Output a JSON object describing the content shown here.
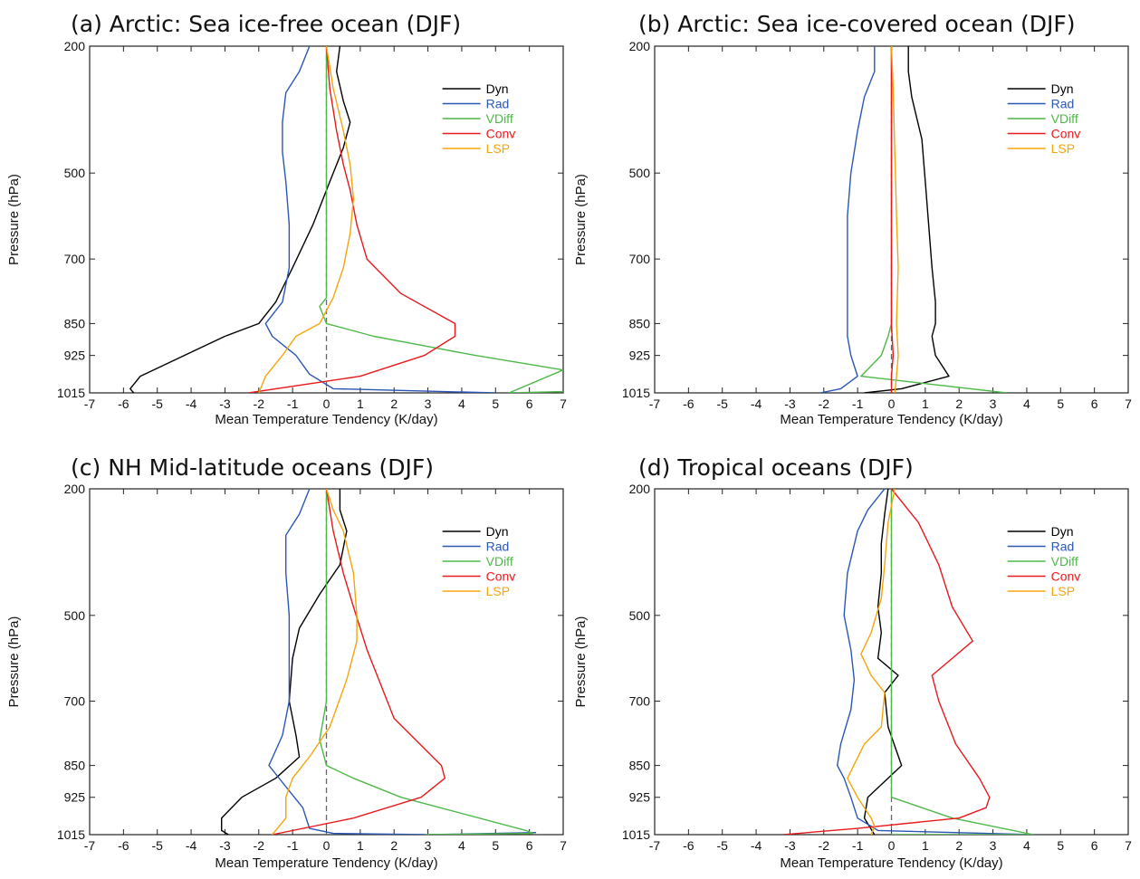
{
  "colors": {
    "Dyn": "#000000",
    "Rad": "#2a56b4",
    "VDiff": "#4db848",
    "Conv": "#e8191d",
    "LSP": "#f5a50c"
  },
  "chart_data": [
    {
      "type": "line",
      "title": "(a) Arctic: Sea ice-free ocean (DJF)",
      "xlabel": "Mean Temperature Tendency (K/day)",
      "ylabel": "Pressure (hPa)",
      "xlim": [
        -7,
        7
      ],
      "ylim": [
        1015,
        200
      ],
      "xticks": [
        "-7",
        "-6",
        "-5",
        "-4",
        "-3",
        "-2",
        "-1",
        "0",
        "1",
        "2",
        "3",
        "4",
        "5",
        "6",
        "7"
      ],
      "yticks": [
        "200",
        "500",
        "700",
        "850",
        "925",
        "1015"
      ],
      "legend": "top-right",
      "series": [
        {
          "name": "Dyn",
          "x": [
            0.4,
            0.3,
            0.5,
            0.7,
            0.5,
            0.1,
            -0.4,
            -1.0,
            -1.5,
            -2.0,
            -3.0,
            -4.2,
            -5.5,
            -5.8,
            -5.7
          ],
          "y": [
            200,
            260,
            330,
            380,
            440,
            520,
            620,
            720,
            800,
            850,
            880,
            925,
            975,
            1005,
            1015
          ]
        },
        {
          "name": "Rad",
          "x": [
            -0.5,
            -0.8,
            -1.2,
            -1.3,
            -1.3,
            -1.2,
            -1.1,
            -1.1,
            -1.3,
            -1.8,
            -1.6,
            -0.9,
            -0.5,
            0.2,
            5.0
          ],
          "y": [
            200,
            260,
            310,
            380,
            450,
            520,
            620,
            720,
            800,
            850,
            880,
            925,
            970,
            1005,
            1015
          ]
        },
        {
          "name": "VDiff",
          "x": [
            0,
            0,
            0,
            0,
            0,
            0.0,
            -0.2,
            0.0,
            1.4,
            4.4,
            7.0,
            5.4,
            7.0
          ],
          "y": [
            200,
            400,
            600,
            700,
            760,
            790,
            810,
            850,
            880,
            925,
            960,
            1015,
            1012
          ]
        },
        {
          "name": "Conv",
          "x": [
            0,
            0.1,
            0.3,
            0.5,
            0.7,
            0.9,
            1.2,
            2.2,
            3.8,
            3.8,
            2.9,
            1.0,
            -2.3
          ],
          "y": [
            200,
            300,
            400,
            480,
            540,
            620,
            700,
            780,
            850,
            880,
            925,
            975,
            1015
          ]
        },
        {
          "name": "LSP",
          "x": [
            0,
            0.2,
            0.5,
            0.7,
            0.8,
            0.7,
            0.5,
            0.2,
            -0.2,
            -0.9,
            -1.3,
            -1.8,
            -2.0
          ],
          "y": [
            200,
            300,
            400,
            480,
            560,
            640,
            720,
            790,
            850,
            880,
            925,
            975,
            1015
          ]
        }
      ]
    },
    {
      "type": "line",
      "title": "(b) Arctic: Sea ice-covered ocean (DJF)",
      "xlabel": "Mean Temperature Tendency (K/day)",
      "ylabel": "Pressure (hPa)",
      "xlim": [
        -7,
        7
      ],
      "ylim": [
        1015,
        200
      ],
      "xticks": [
        "-7",
        "-6",
        "-5",
        "-4",
        "-3",
        "-2",
        "-1",
        "0",
        "1",
        "2",
        "3",
        "4",
        "5",
        "6",
        "7"
      ],
      "yticks": [
        "200",
        "500",
        "700",
        "850",
        "925",
        "1015"
      ],
      "legend": "top-right",
      "series": [
        {
          "name": "Dyn",
          "x": [
            0.5,
            0.5,
            0.6,
            0.9,
            1.0,
            1.1,
            1.2,
            1.3,
            1.3,
            1.2,
            1.3,
            1.7,
            0.3,
            -0.8
          ],
          "y": [
            200,
            260,
            320,
            420,
            520,
            620,
            720,
            800,
            850,
            880,
            925,
            975,
            1005,
            1015
          ]
        },
        {
          "name": "Rad",
          "x": [
            -0.5,
            -0.5,
            -0.8,
            -1.0,
            -1.2,
            -1.3,
            -1.3,
            -1.3,
            -1.3,
            -1.3,
            -1.2,
            -1.0,
            -1.5,
            -2.1
          ],
          "y": [
            200,
            260,
            320,
            400,
            500,
            600,
            700,
            800,
            850,
            880,
            925,
            975,
            1005,
            1015
          ]
        },
        {
          "name": "VDiff",
          "x": [
            0,
            0,
            0,
            0,
            0,
            0,
            -0.1,
            -0.3,
            -0.9,
            3.4
          ],
          "y": [
            200,
            400,
            600,
            700,
            800,
            850,
            880,
            925,
            975,
            1015
          ]
        },
        {
          "name": "Conv",
          "x": [
            0,
            0,
            0,
            0,
            0,
            0.05,
            0,
            0
          ],
          "y": [
            200,
            300,
            500,
            700,
            850,
            925,
            975,
            1015
          ]
        },
        {
          "name": "LSP",
          "x": [
            0,
            0.05,
            0.1,
            0.15,
            0.2,
            0.15,
            0.2,
            0.15,
            0.1
          ],
          "y": [
            200,
            300,
            450,
            600,
            720,
            850,
            925,
            975,
            1015
          ]
        }
      ]
    },
    {
      "type": "line",
      "title": "(c) NH Mid-latitude oceans (DJF)",
      "xlabel": "Mean Temperature Tendency (K/day)",
      "ylabel": "Pressure (hPa)",
      "xlim": [
        -7,
        7
      ],
      "ylim": [
        1015,
        200
      ],
      "xticks": [
        "-7",
        "-6",
        "-5",
        "-4",
        "-3",
        "-2",
        "-1",
        "0",
        "1",
        "2",
        "3",
        "4",
        "5",
        "6",
        "7"
      ],
      "yticks": [
        "200",
        "500",
        "700",
        "850",
        "925",
        "1015"
      ],
      "legend": "top-right",
      "series": [
        {
          "name": "Dyn",
          "x": [
            0.4,
            0.4,
            0.6,
            0.4,
            -0.2,
            -0.8,
            -1.0,
            -1.1,
            -0.9,
            -0.8,
            -1.5,
            -2.5,
            -3.1,
            -3.1,
            -2.9
          ],
          "y": [
            200,
            250,
            300,
            380,
            450,
            530,
            600,
            700,
            780,
            830,
            880,
            925,
            975,
            1005,
            1015
          ]
        },
        {
          "name": "Rad",
          "x": [
            -0.5,
            -0.8,
            -1.2,
            -1.2,
            -1.1,
            -1.1,
            -1.1,
            -1.3,
            -1.7,
            -1.2,
            -0.7,
            -0.5,
            0.2,
            3.0,
            6.2
          ],
          "y": [
            200,
            260,
            310,
            400,
            500,
            600,
            700,
            780,
            850,
            900,
            950,
            1000,
            1012,
            1015,
            1010
          ]
        },
        {
          "name": "VDiff",
          "x": [
            0,
            0,
            0,
            0,
            -0.2,
            0.0,
            0.8,
            2.2,
            5.9,
            6.1,
            2.9
          ],
          "y": [
            200,
            400,
            600,
            700,
            790,
            850,
            880,
            925,
            1005,
            1012,
            1015
          ]
        },
        {
          "name": "Conv",
          "x": [
            0,
            0.2,
            0.5,
            0.8,
            1.2,
            2.0,
            3.4,
            3.5,
            2.8,
            0.8,
            -1.6
          ],
          "y": [
            200,
            300,
            400,
            480,
            580,
            740,
            850,
            880,
            925,
            975,
            1015
          ]
        },
        {
          "name": "LSP",
          "x": [
            0,
            0.2,
            0.5,
            0.8,
            0.9,
            0.9,
            0.6,
            0.1,
            -0.5,
            -1.0,
            -1.2,
            -1.2,
            -1.6
          ],
          "y": [
            200,
            250,
            300,
            400,
            500,
            560,
            650,
            760,
            830,
            880,
            925,
            975,
            1015
          ]
        }
      ]
    },
    {
      "type": "line",
      "title": "(d) Tropical oceans (DJF)",
      "xlabel": "Mean Temperature Tendency (K/day)",
      "ylabel": "Pressure (hPa)",
      "xlim": [
        -7,
        7
      ],
      "ylim": [
        1015,
        200
      ],
      "xticks": [
        "-7",
        "-6",
        "-5",
        "-4",
        "-3",
        "-2",
        "-1",
        "0",
        "1",
        "2",
        "3",
        "4",
        "5",
        "6",
        "7"
      ],
      "yticks": [
        "200",
        "500",
        "700",
        "850",
        "925",
        "1015"
      ],
      "legend": "top-right",
      "series": [
        {
          "name": "Dyn",
          "x": [
            -0.1,
            -0.2,
            -0.3,
            -0.3,
            -0.4,
            -0.3,
            -0.4,
            0.2,
            -0.2,
            -0.1,
            0.3,
            -0.7,
            -0.8,
            -0.5
          ],
          "y": [
            200,
            260,
            330,
            400,
            480,
            540,
            600,
            640,
            680,
            760,
            850,
            925,
            975,
            1015
          ]
        },
        {
          "name": "Rad",
          "x": [
            -0.2,
            -0.7,
            -1.0,
            -1.3,
            -1.4,
            -1.2,
            -1.1,
            -1.2,
            -1.5,
            -1.6,
            -1.4,
            -1.2,
            -1.0,
            -0.4,
            4.2
          ],
          "y": [
            200,
            250,
            300,
            400,
            500,
            580,
            650,
            720,
            800,
            850,
            880,
            925,
            975,
            1005,
            1015
          ]
        },
        {
          "name": "VDiff",
          "x": [
            0,
            0,
            0,
            0,
            0,
            0,
            0,
            0,
            1.8,
            4.2,
            0
          ],
          "y": [
            200,
            400,
            600,
            700,
            800,
            850,
            900,
            925,
            975,
            1015,
            1015
          ]
        },
        {
          "name": "Conv",
          "x": [
            0,
            0.8,
            1.4,
            1.8,
            2.4,
            1.2,
            1.4,
            1.9,
            2.6,
            2.9,
            2.8,
            2.0,
            -1.0,
            -3.2
          ],
          "y": [
            200,
            280,
            380,
            480,
            560,
            640,
            700,
            800,
            880,
            925,
            950,
            975,
            1000,
            1015
          ]
        },
        {
          "name": "LSP",
          "x": [
            0.1,
            -0.1,
            -0.2,
            -0.3,
            -0.6,
            -0.9,
            -0.6,
            -0.2,
            -0.3,
            -0.8,
            -1.3,
            -1.0,
            -0.6,
            -0.5,
            -0.6
          ],
          "y": [
            200,
            280,
            380,
            460,
            540,
            590,
            640,
            680,
            760,
            800,
            880,
            925,
            975,
            995,
            1015
          ]
        }
      ]
    }
  ]
}
